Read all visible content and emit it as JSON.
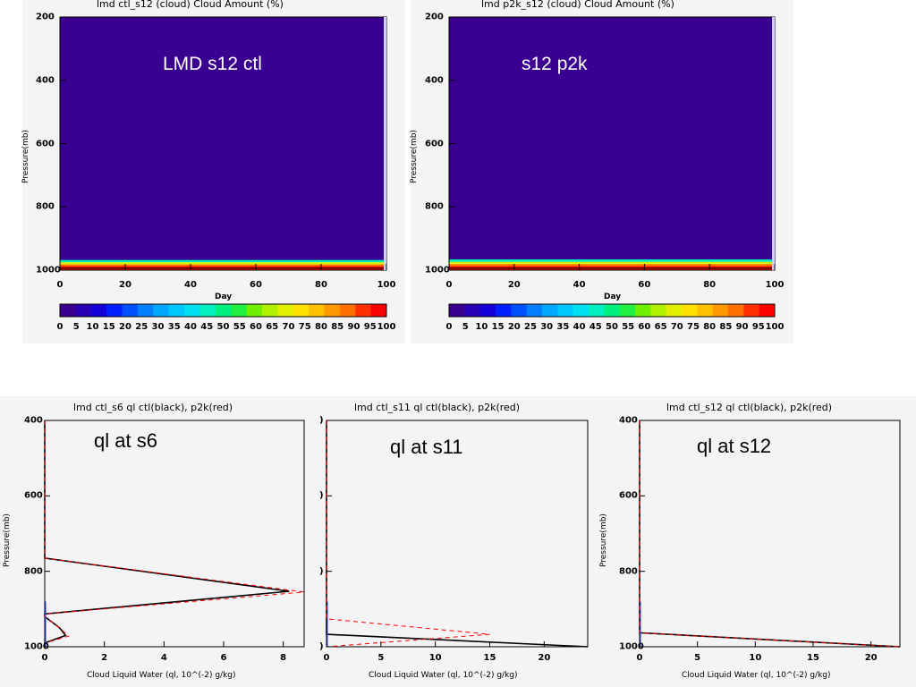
{
  "chart_data": [
    {
      "type": "heatmap",
      "title": "lmd ctl_s12   (cloud)   Cloud Amount (%)",
      "annotation": "LMD s12 ctl",
      "xlabel": "Day",
      "ylabel": "Pressure(mb)",
      "x_ticks": [
        "0",
        "20",
        "40",
        "60",
        "80",
        "100"
      ],
      "y_ticks": [
        "200",
        "400",
        "600",
        "800",
        "1000"
      ],
      "xlim": [
        0,
        100
      ],
      "ylim": [
        200,
        1000
      ],
      "colorbar_ticks": [
        "0",
        "5",
        "10",
        "15",
        "20",
        "25",
        "30",
        "35",
        "40",
        "45",
        "50",
        "55",
        "60",
        "65",
        "70",
        "75",
        "80",
        "85",
        "90",
        "95",
        "100"
      ],
      "colorbar_colors": [
        "#3a0090",
        "#2a00b4",
        "#1400d8",
        "#0020ff",
        "#0050ff",
        "#0080ff",
        "#00a8ff",
        "#00c8ff",
        "#00e0f0",
        "#00f0c0",
        "#00f080",
        "#20f040",
        "#70f000",
        "#b0f000",
        "#e0f000",
        "#ffe000",
        "#ffc000",
        "#ff9800",
        "#ff7000",
        "#ff3000",
        "#ff0000"
      ],
      "background_value": 0,
      "cloud_layer": [
        {
          "pressure": 968,
          "amount": 45
        },
        {
          "pressure": 975,
          "amount": 70
        },
        {
          "pressure": 982,
          "amount": 90
        },
        {
          "pressure": 988,
          "amount": 100
        }
      ]
    },
    {
      "type": "heatmap",
      "title": "lmd p2k_s12   (cloud)   Cloud Amount (%)",
      "annotation": "s12 p2k",
      "xlabel": "Day",
      "ylabel": "Pressure(mb)",
      "x_ticks": [
        "0",
        "20",
        "40",
        "60",
        "80",
        "100"
      ],
      "y_ticks": [
        "200",
        "400",
        "600",
        "800",
        "1000"
      ],
      "xlim": [
        0,
        100
      ],
      "ylim": [
        200,
        1000
      ],
      "colorbar_ticks": [
        "0",
        "5",
        "10",
        "15",
        "20",
        "25",
        "30",
        "35",
        "40",
        "45",
        "50",
        "55",
        "60",
        "65",
        "70",
        "75",
        "80",
        "85",
        "90",
        "95",
        "100"
      ],
      "colorbar_colors": [
        "#3a0090",
        "#2a00b4",
        "#1400d8",
        "#0020ff",
        "#0050ff",
        "#0080ff",
        "#00a8ff",
        "#00c8ff",
        "#00e0f0",
        "#00f0c0",
        "#00f080",
        "#20f040",
        "#70f000",
        "#b0f000",
        "#e0f000",
        "#ffe000",
        "#ffc000",
        "#ff9800",
        "#ff7000",
        "#ff3000",
        "#ff0000"
      ],
      "background_value": 0,
      "cloud_layer": [
        {
          "pressure": 966,
          "amount": 45
        },
        {
          "pressure": 974,
          "amount": 70
        },
        {
          "pressure": 981,
          "amount": 90
        },
        {
          "pressure": 988,
          "amount": 100
        }
      ]
    },
    {
      "type": "line",
      "title": "lmd ctl_s6 ql ctl(black), p2k(red)",
      "annotation": "ql at s6",
      "xlabel": "Cloud Liquid Water (ql, 10^(-2) g/kg)",
      "ylabel": "Pressure(mb)",
      "xlim": [
        0,
        8.7
      ],
      "ylim": [
        400,
        1000
      ],
      "x_ticks": [
        "0",
        "2",
        "4",
        "6",
        "8"
      ],
      "y_ticks": [
        "400",
        "600",
        "800",
        "1000"
      ],
      "series": [
        {
          "name": "ctl",
          "color": "#000000",
          "dash": "none",
          "x": [
            0,
            0,
            8.2,
            0,
            0,
            0.5,
            0.7,
            0,
            0
          ],
          "y": [
            400,
            765,
            853,
            913,
            920,
            950,
            970,
            990,
            1000
          ]
        },
        {
          "name": "p2k",
          "color": "#ff0000",
          "dash": "5,4",
          "x": [
            0,
            0,
            8.7,
            0,
            0,
            0.5,
            0.8,
            0,
            0
          ],
          "y": [
            400,
            765,
            855,
            913,
            920,
            950,
            972,
            990,
            1000
          ]
        }
      ]
    },
    {
      "type": "line",
      "title": "lmd ctl_s11 ql ctl(black), p2k(red)",
      "annotation": "ql at s11",
      "xlabel": "Cloud Liquid Water (ql, 10^(-2) g/kg)",
      "ylabel": "",
      "xlim": [
        0,
        24
      ],
      "ylim": [
        400,
        1000
      ],
      "x_ticks": [
        "0",
        "5",
        "10",
        "15",
        "20"
      ],
      "y_ticks": [
        ")",
        ")",
        ")",
        ")"
      ],
      "series": [
        {
          "name": "ctl",
          "color": "#000000",
          "dash": "none",
          "x": [
            0,
            0,
            24,
            24
          ],
          "y": [
            400,
            967,
            1000,
            1000
          ]
        },
        {
          "name": "p2k",
          "color": "#ff0000",
          "dash": "5,4",
          "x": [
            0,
            0,
            15,
            0,
            0
          ],
          "y": [
            400,
            926,
            967,
            1000,
            1000
          ]
        }
      ]
    },
    {
      "type": "line",
      "title": "lmd ctl_s12 ql ctl(black), p2k(red)",
      "annotation": "ql at s12",
      "xlabel": "Cloud Liquid Water (ql, 10^(-2) g/kg)",
      "ylabel": "Pressure(mb)",
      "xlim": [
        0,
        22.5
      ],
      "ylim": [
        400,
        1000
      ],
      "x_ticks": [
        "0",
        "5",
        "10",
        "15",
        "20"
      ],
      "y_ticks": [
        "400",
        "600",
        "800",
        "1000"
      ],
      "series": [
        {
          "name": "ctl",
          "color": "#000000",
          "dash": "none",
          "x": [
            0,
            0,
            22.5
          ],
          "y": [
            400,
            963,
            1000
          ]
        },
        {
          "name": "p2k",
          "color": "#ff0000",
          "dash": "5,4",
          "x": [
            0,
            0,
            22.5
          ],
          "y": [
            400,
            963,
            1000
          ]
        }
      ]
    }
  ]
}
